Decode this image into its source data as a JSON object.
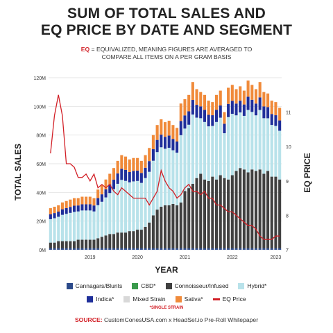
{
  "header": {
    "title_line1": "SUM OF TOTAL SALES AND",
    "title_line2": "EQ PRICE BY DATE AND SEGMENT",
    "note_key": "EQ",
    "note_text_line1": " = EQUIVALIZED, MEANING FIGURES ARE AVERAGED TO",
    "note_text_line2": "COMPARE ALL ITEMS ON A PER GRAM BASIS"
  },
  "legend": {
    "row1": [
      {
        "label": "Cannagars/Blunts",
        "color": "#2c4a8a"
      },
      {
        "label": "CBD*",
        "color": "#3a9a4c"
      },
      {
        "label": "Connoisseur/Infused",
        "color": "#404040"
      },
      {
        "label": "Hybrid*",
        "color": "#b8e2ea"
      }
    ],
    "row2": [
      {
        "label": "Indica*",
        "color": "#1f2f9a"
      },
      {
        "label": "Mixed Strain",
        "color": "#d8d8d8"
      },
      {
        "label": "Sativa*",
        "color": "#f08a3a"
      },
      {
        "label": "EQ Price",
        "color": "#d21f26"
      }
    ],
    "footnote": "*SINGLE STRAIN"
  },
  "source": {
    "label": "SOURCE:",
    "text": " CustomConesUSA.com x HeadSet.io Pre-Roll Whitepaper"
  },
  "chart_data": {
    "type": "bar",
    "stacked": true,
    "xlabel": "YEAR",
    "ylabel": "TOTAL SALES",
    "y2label": "EQ PRICE",
    "ylim": [
      0,
      120
    ],
    "y_ticks": [
      "0M",
      "20M",
      "40M",
      "60M",
      "80M",
      "100M",
      "120M"
    ],
    "y2lim": [
      7,
      12
    ],
    "y2_ticks": [
      "7",
      "8",
      "9",
      "10",
      "11"
    ],
    "x_ticks": [
      {
        "label": "2019",
        "index": 10
      },
      {
        "label": "2020",
        "index": 22
      },
      {
        "label": "2021",
        "index": 34
      },
      {
        "label": "2022",
        "index": 46
      },
      {
        "label": "2023",
        "index": 57
      }
    ],
    "colors": {
      "Cannagars/Blunts": "#2c4a8a",
      "CBD*": "#3a9a4c",
      "Connoisseur/Infused": "#404040",
      "Hybrid*": "#b8e2ea",
      "Indica*": "#1f2f9a",
      "Mixed Strain": "#d8d8d8",
      "Sativa*": "#f08a3a",
      "EQ Price": "#d21f26"
    },
    "totals": [
      29,
      30,
      31,
      33,
      34,
      35,
      36,
      36,
      37,
      37,
      37,
      36,
      42,
      45,
      49,
      53,
      57,
      62,
      66,
      65,
      63,
      64,
      64,
      62,
      66,
      71,
      80,
      87,
      91,
      89,
      90,
      87,
      85,
      102,
      105,
      108,
      117,
      112,
      110,
      108,
      104,
      103,
      108,
      111,
      96,
      113,
      115,
      112,
      114,
      111,
      118,
      115,
      112,
      117,
      110,
      109,
      104,
      103,
      99
    ],
    "connoisseur": [
      4,
      4,
      5,
      5,
      5,
      5,
      5,
      6,
      6,
      6,
      6,
      6,
      7,
      8,
      9,
      10,
      10,
      11,
      11,
      11,
      12,
      12,
      13,
      13,
      15,
      18,
      23,
      27,
      29,
      30,
      30,
      31,
      30,
      32,
      40,
      42,
      45,
      49,
      52,
      48,
      47,
      50,
      48,
      51,
      49,
      48,
      51,
      54,
      56,
      55,
      53,
      55,
      54,
      55,
      52,
      54,
      50,
      50,
      48
    ],
    "hybrid_share": 0.68,
    "indica_share": 0.45,
    "eq_price": [
      9.8,
      10.9,
      11.5,
      10.9,
      9.5,
      9.5,
      9.4,
      9.1,
      9.1,
      9.2,
      9.0,
      9.2,
      8.8,
      8.9,
      8.8,
      8.9,
      8.7,
      8.6,
      8.8,
      8.7,
      8.6,
      8.5,
      8.5,
      8.5,
      8.5,
      8.3,
      8.5,
      8.7,
      9.3,
      9.0,
      8.8,
      8.7,
      8.5,
      8.6,
      8.8,
      8.9,
      8.7,
      8.7,
      8.6,
      8.7,
      8.5,
      8.5,
      8.3,
      8.3,
      8.2,
      8.1,
      8.1,
      8.0,
      7.9,
      7.8,
      7.7,
      7.7,
      7.6,
      7.4,
      7.3,
      7.3,
      7.3,
      7.4,
      7.4
    ]
  }
}
